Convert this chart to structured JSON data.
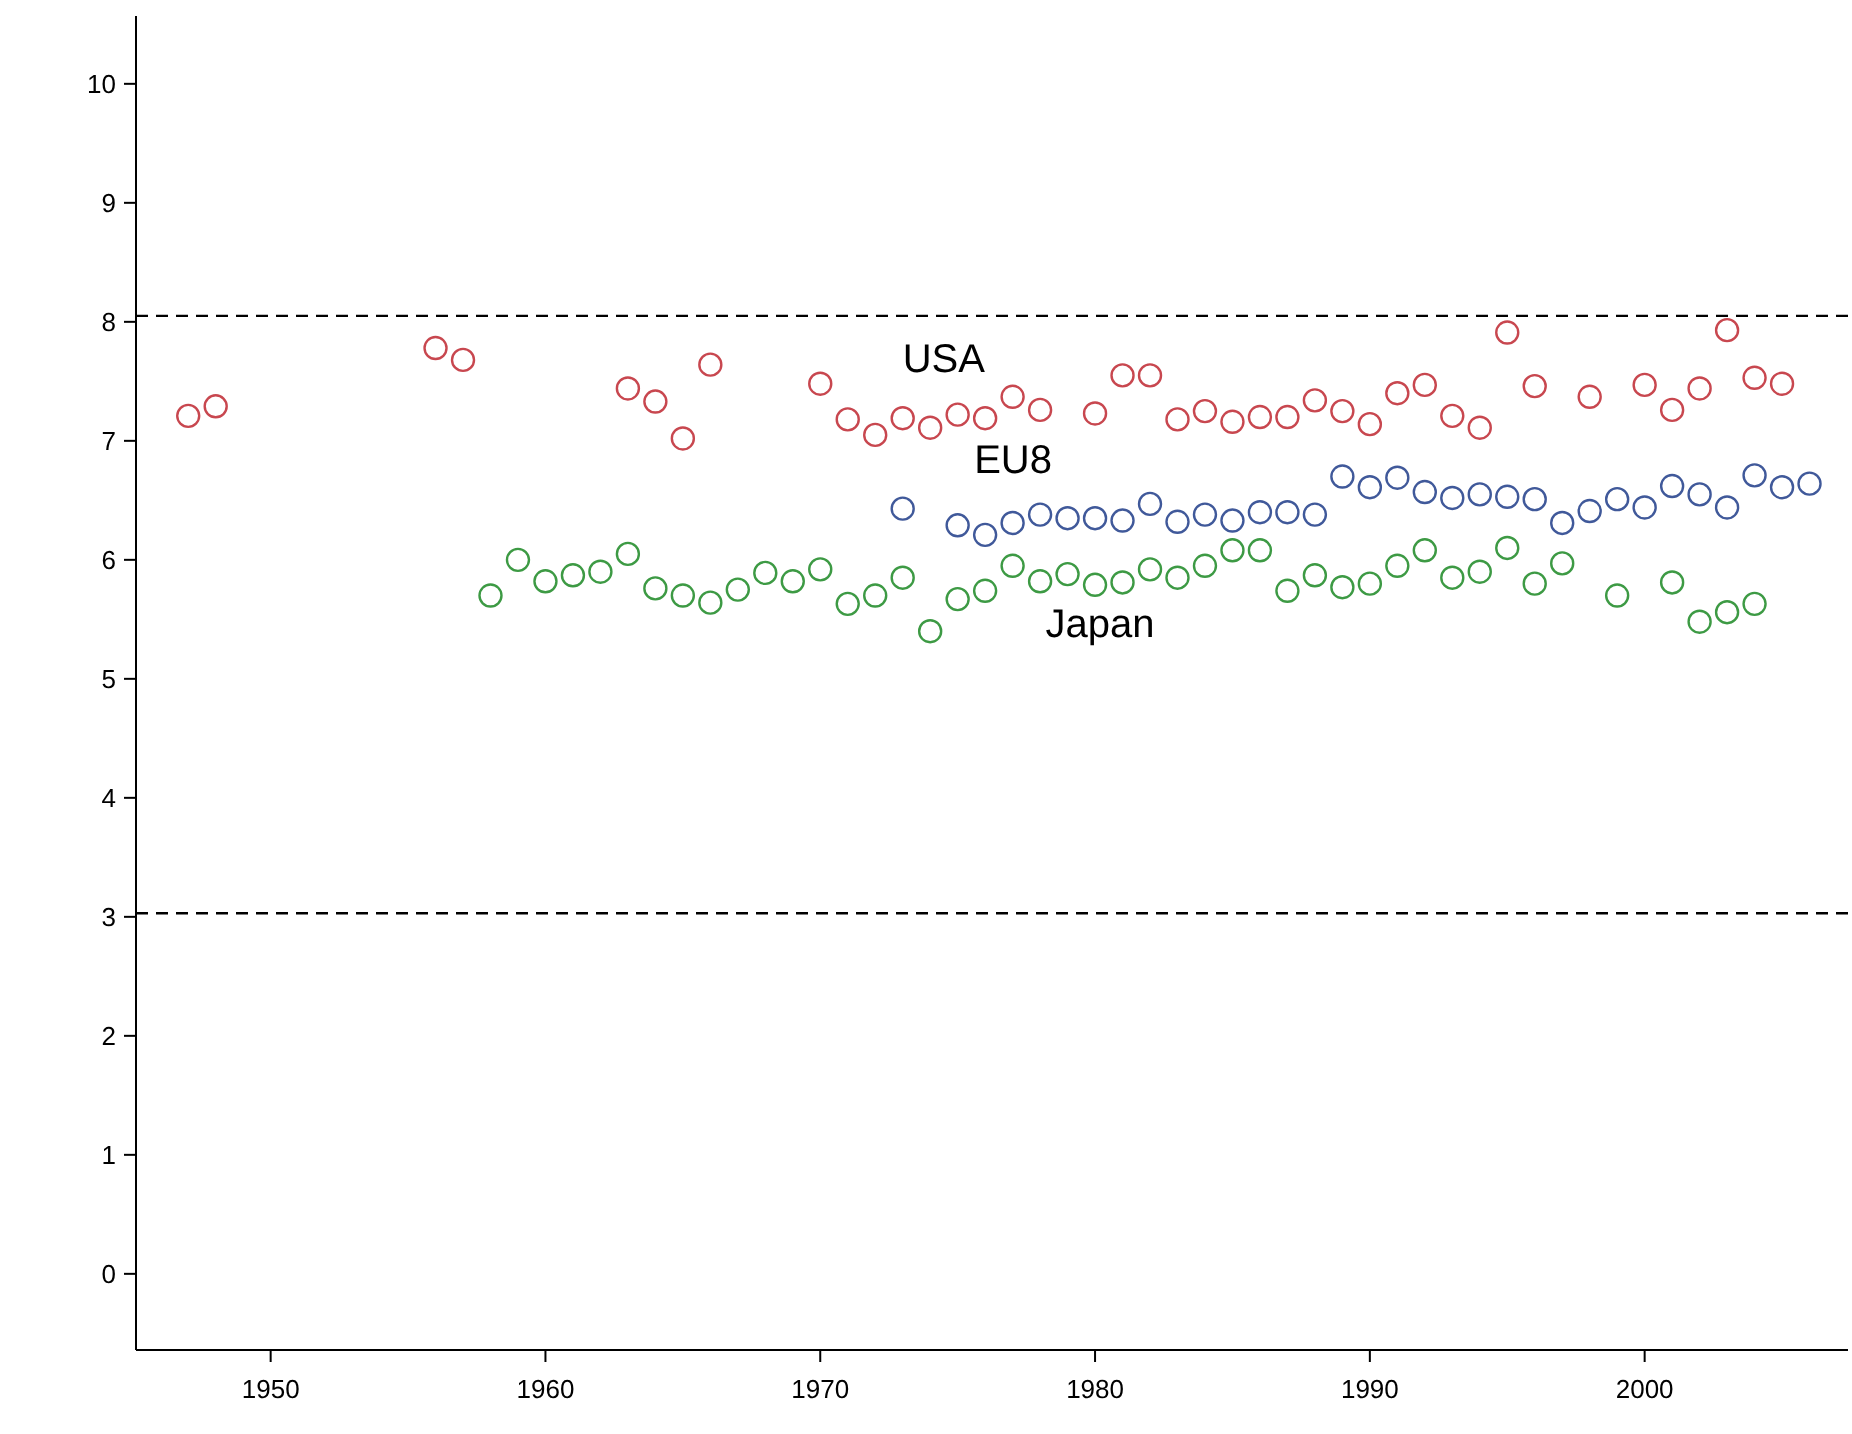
{
  "chart_data": {
    "type": "scatter",
    "marker": "circle",
    "grid": false,
    "xlim": [
      1945.1,
      2007.4
    ],
    "ylim": [
      -0.64,
      10.57
    ],
    "xticks": [
      1950,
      1960,
      1970,
      1980,
      1990,
      2000
    ],
    "yticks": [
      0,
      1,
      2,
      3,
      4,
      5,
      6,
      7,
      8,
      9,
      10
    ],
    "series": [
      {
        "name": "USA",
        "color": "#c8474f",
        "x": [
          1947,
          1948,
          1956,
          1957,
          1963,
          1964,
          1965,
          1966,
          1970,
          1971,
          1972,
          1973,
          1974,
          1975,
          1976,
          1977,
          1978,
          1980,
          1981,
          1982,
          1983,
          1984,
          1985,
          1986,
          1987,
          1988,
          1989,
          1990,
          1991,
          1992,
          1993,
          1994,
          1995,
          1996,
          1998,
          2000,
          2001,
          2002,
          2003,
          2004,
          2005
        ],
        "values": [
          7.21,
          7.29,
          7.78,
          7.68,
          7.44,
          7.33,
          7.02,
          7.64,
          7.48,
          7.18,
          7.05,
          7.19,
          7.11,
          7.22,
          7.19,
          7.37,
          7.26,
          7.23,
          7.55,
          7.55,
          7.18,
          7.25,
          7.16,
          7.2,
          7.2,
          7.34,
          7.25,
          7.14,
          7.4,
          7.47,
          7.21,
          7.11,
          7.91,
          7.46,
          7.37,
          7.47,
          7.26,
          7.44,
          7.93,
          7.53,
          7.48
        ]
      },
      {
        "name": "EU8",
        "color": "#40599a",
        "x": [
          1973,
          1975,
          1976,
          1977,
          1978,
          1979,
          1980,
          1981,
          1982,
          1983,
          1984,
          1985,
          1986,
          1987,
          1988,
          1989,
          1990,
          1991,
          1992,
          1993,
          1994,
          1995,
          1996,
          1997,
          1998,
          1999,
          2000,
          2001,
          2002,
          2003,
          2004,
          2005,
          2006
        ],
        "values": [
          6.43,
          6.29,
          6.21,
          6.31,
          6.38,
          6.35,
          6.35,
          6.33,
          6.47,
          6.32,
          6.38,
          6.33,
          6.4,
          6.4,
          6.38,
          6.7,
          6.61,
          6.69,
          6.57,
          6.52,
          6.55,
          6.53,
          6.51,
          6.31,
          6.41,
          6.51,
          6.44,
          6.62,
          6.55,
          6.44,
          6.71,
          6.61,
          6.64
        ]
      },
      {
        "name": "Japan",
        "color": "#3d9a44",
        "x": [
          1958,
          1959,
          1960,
          1961,
          1962,
          1963,
          1964,
          1965,
          1966,
          1967,
          1968,
          1969,
          1970,
          1971,
          1972,
          1973,
          1974,
          1975,
          1976,
          1977,
          1978,
          1979,
          1980,
          1981,
          1982,
          1983,
          1984,
          1985,
          1986,
          1987,
          1988,
          1989,
          1990,
          1991,
          1992,
          1993,
          1994,
          1995,
          1996,
          1997,
          1999,
          2001,
          2002,
          2003,
          2004
        ],
        "values": [
          5.7,
          6.0,
          5.82,
          5.87,
          5.9,
          6.05,
          5.76,
          5.7,
          5.64,
          5.75,
          5.89,
          5.82,
          5.92,
          5.63,
          5.7,
          5.85,
          5.4,
          5.67,
          5.74,
          5.95,
          5.82,
          5.88,
          5.79,
          5.81,
          5.92,
          5.85,
          5.95,
          6.08,
          6.08,
          5.74,
          5.87,
          5.77,
          5.8,
          5.95,
          6.08,
          5.85,
          5.9,
          6.1,
          5.8,
          5.97,
          5.7,
          5.81,
          5.48,
          5.56,
          5.63
        ]
      }
    ],
    "ref_lines": [
      {
        "axis": "y",
        "value": 8.05,
        "color": "#000000",
        "line_style": "dashed"
      },
      {
        "axis": "y",
        "value": 3.03,
        "color": "#000000",
        "line_style": "dashed"
      }
    ],
    "legend": false
  }
}
